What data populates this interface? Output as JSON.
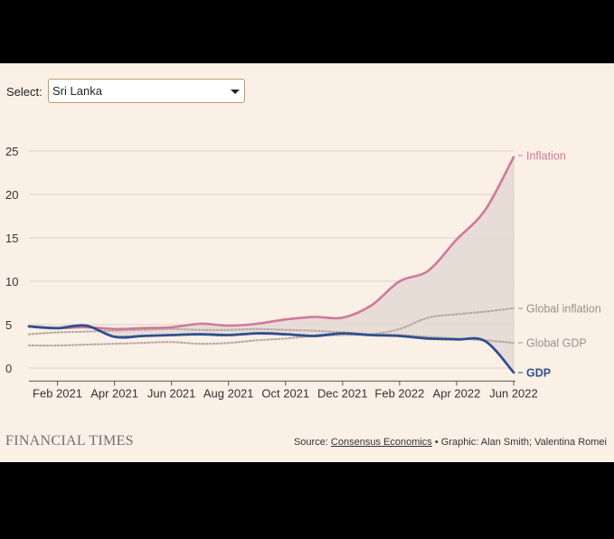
{
  "select": {
    "label": "Select:",
    "value": "Sri Lanka"
  },
  "footer": {
    "logo": "FINANCIAL TIMES",
    "source_prefix": "Source: ",
    "source_link": "Consensus Economics",
    "credit": " • Graphic: Alan Smith; Valentina Romei"
  },
  "colors": {
    "inflation": "#d1789b",
    "gdp": "#2f4f8f",
    "global": "#b8aaa6",
    "band": "#e4d9d4",
    "grid": "#d9cfc6",
    "background": "#fbf0e6"
  },
  "chart_data": {
    "type": "line",
    "title": "",
    "xlabel": "",
    "ylabel": "",
    "ylim": [
      -1.5,
      26
    ],
    "yticks": [
      0,
      5,
      10,
      15,
      20,
      25
    ],
    "xticks": [
      "Feb 2021",
      "Apr 2021",
      "Jun 2021",
      "Aug 2021",
      "Oct 2021",
      "Dec 2021",
      "Feb 2022",
      "Apr 2022",
      "Jun 2022"
    ],
    "x": [
      "Jan 2021",
      "Feb 2021",
      "Mar 2021",
      "Apr 2021",
      "May 2021",
      "Jun 2021",
      "Jul 2021",
      "Aug 2021",
      "Sep 2021",
      "Oct 2021",
      "Nov 2021",
      "Dec 2021",
      "Jan 2022",
      "Feb 2022",
      "Mar 2022",
      "Apr 2022",
      "May 2022",
      "Jun 2022"
    ],
    "grid": true,
    "shaded_band_between": [
      "Inflation",
      "GDP"
    ],
    "series": [
      {
        "name": "Inflation",
        "style": "solid",
        "values": [
          4.8,
          4.6,
          4.7,
          4.5,
          4.6,
          4.7,
          5.1,
          4.9,
          5.1,
          5.6,
          5.9,
          5.8,
          7.2,
          10.0,
          11.2,
          14.8,
          18.2,
          24.3
        ]
      },
      {
        "name": "GDP",
        "style": "solid",
        "values": [
          4.8,
          4.6,
          4.9,
          3.6,
          3.7,
          3.8,
          3.9,
          3.8,
          4.0,
          3.9,
          3.7,
          4.0,
          3.8,
          3.7,
          3.4,
          3.3,
          3.1,
          -0.5
        ]
      },
      {
        "name": "Global inflation",
        "style": "dotted",
        "values": [
          2.6,
          2.6,
          2.7,
          2.8,
          2.9,
          3.0,
          2.8,
          2.9,
          3.2,
          3.4,
          3.7,
          3.8,
          3.9,
          4.5,
          5.8,
          6.2,
          6.5,
          6.9
        ]
      },
      {
        "name": "Global GDP",
        "style": "dotted",
        "values": [
          3.9,
          4.1,
          4.2,
          4.3,
          4.4,
          4.5,
          4.4,
          4.4,
          4.5,
          4.4,
          4.3,
          4.1,
          3.9,
          3.8,
          3.6,
          3.4,
          3.2,
          2.9
        ]
      }
    ]
  }
}
